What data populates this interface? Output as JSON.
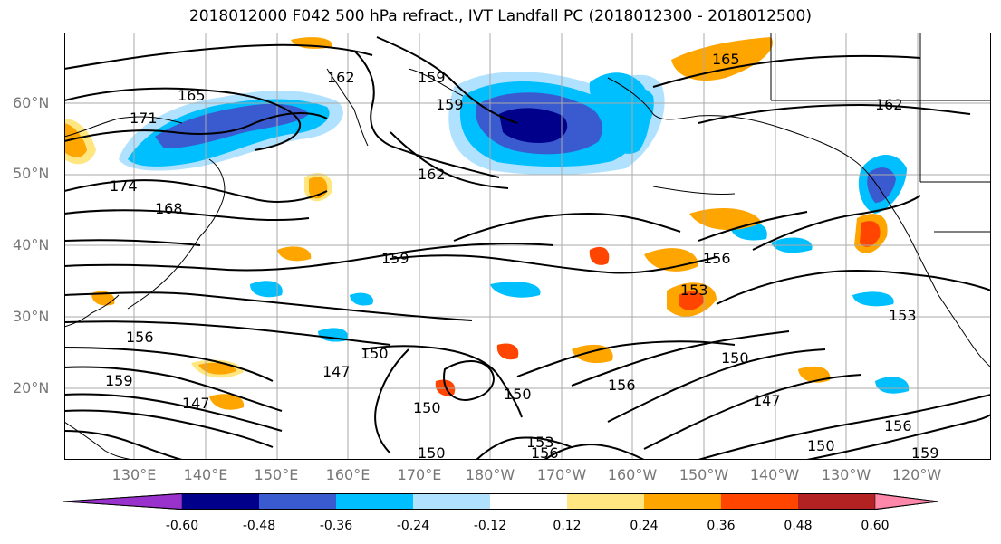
{
  "title": "2018012000 F042 500 hPa refract., IVT Landfall PC (2018012300 - 2018012500)",
  "lat_labels": [
    "60°N",
    "50°N",
    "40°N",
    "30°N",
    "20°N"
  ],
  "lon_labels": [
    "130°E",
    "140°E",
    "150°E",
    "160°E",
    "170°E",
    "180°W",
    "170°W",
    "160°W",
    "150°W",
    "140°W",
    "130°W",
    "120°W"
  ],
  "contour_labels": [
    "165",
    "171",
    "174",
    "168",
    "162",
    "159",
    "159",
    "162",
    "165",
    "162",
    "159",
    "156",
    "153",
    "153",
    "156",
    "159",
    "147",
    "150",
    "147",
    "150",
    "153",
    "156",
    "156",
    "150",
    "147",
    "150",
    "150",
    "156",
    "159",
    "150"
  ],
  "colorbar": {
    "tick_labels": [
      "-0.60",
      "-0.48",
      "-0.36",
      "-0.24",
      "-0.12",
      "0.12",
      "0.24",
      "0.36",
      "0.48",
      "0.60"
    ],
    "colors": [
      "#9932cc",
      "#00008b",
      "#3a5bd0",
      "#00bfff",
      "#b0e2ff",
      "#ffffff",
      "#ffe680",
      "#ffa500",
      "#ff4500",
      "#b22222",
      "#ff88aa"
    ]
  },
  "fill_colors": {
    "neg_light": "#b0e2ff",
    "neg_mid": "#00bfff",
    "neg_strong": "#3a5bd0",
    "neg_max": "#00008b",
    "pos_light": "#ffe680",
    "pos_mid": "#ffa500",
    "pos_strong": "#ff4500"
  }
}
